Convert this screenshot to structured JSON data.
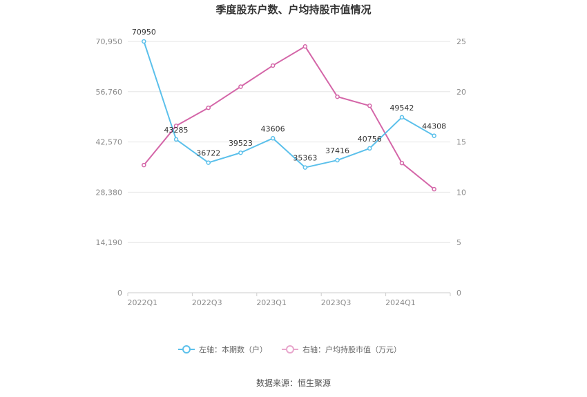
{
  "chart_data": {
    "type": "line",
    "title": "季度股东户数、户均持股市值情况",
    "categories": [
      "2022Q1",
      "2022Q2",
      "2022Q3",
      "2022Q4",
      "2023Q1",
      "2023Q2",
      "2023Q3",
      "2023Q4",
      "2024Q1",
      "2024Q2"
    ],
    "x_tick_labels": [
      "2022Q1",
      "2022Q3",
      "2023Q1",
      "2023Q3",
      "2024Q1"
    ],
    "left_axis": {
      "ylim": [
        0,
        70950
      ],
      "ticks": [
        0,
        14190,
        28380,
        42570,
        56760,
        70950
      ],
      "tick_labels": [
        "0",
        "14,190",
        "28,380",
        "42,570",
        "56,760",
        "70,950"
      ]
    },
    "right_axis": {
      "ylim": [
        0,
        25
      ],
      "ticks": [
        0,
        5,
        10,
        15,
        20,
        25
      ],
      "tick_labels": [
        "0",
        "5",
        "10",
        "15",
        "20",
        "25"
      ]
    },
    "series": [
      {
        "name": "左轴：本期数（户）",
        "axis": "left",
        "color": "#5bc0eb",
        "values": [
          70950,
          43285,
          36722,
          39523,
          43606,
          35363,
          37416,
          40756,
          49542,
          44308
        ],
        "labels": [
          "70950",
          "43285",
          "36722",
          "39523",
          "43606",
          "35363",
          "37416",
          "40756",
          "49542",
          "44308"
        ]
      },
      {
        "name": "右轴：户均持股市值（万元）",
        "axis": "right",
        "color": "#d466a8",
        "values": [
          12.7,
          16.6,
          18.4,
          20.5,
          22.6,
          24.5,
          19.5,
          18.6,
          12.9,
          10.3
        ]
      }
    ],
    "grid": true,
    "legend_position": "bottom"
  },
  "footer": {
    "source": "数据来源：恒生聚源"
  }
}
